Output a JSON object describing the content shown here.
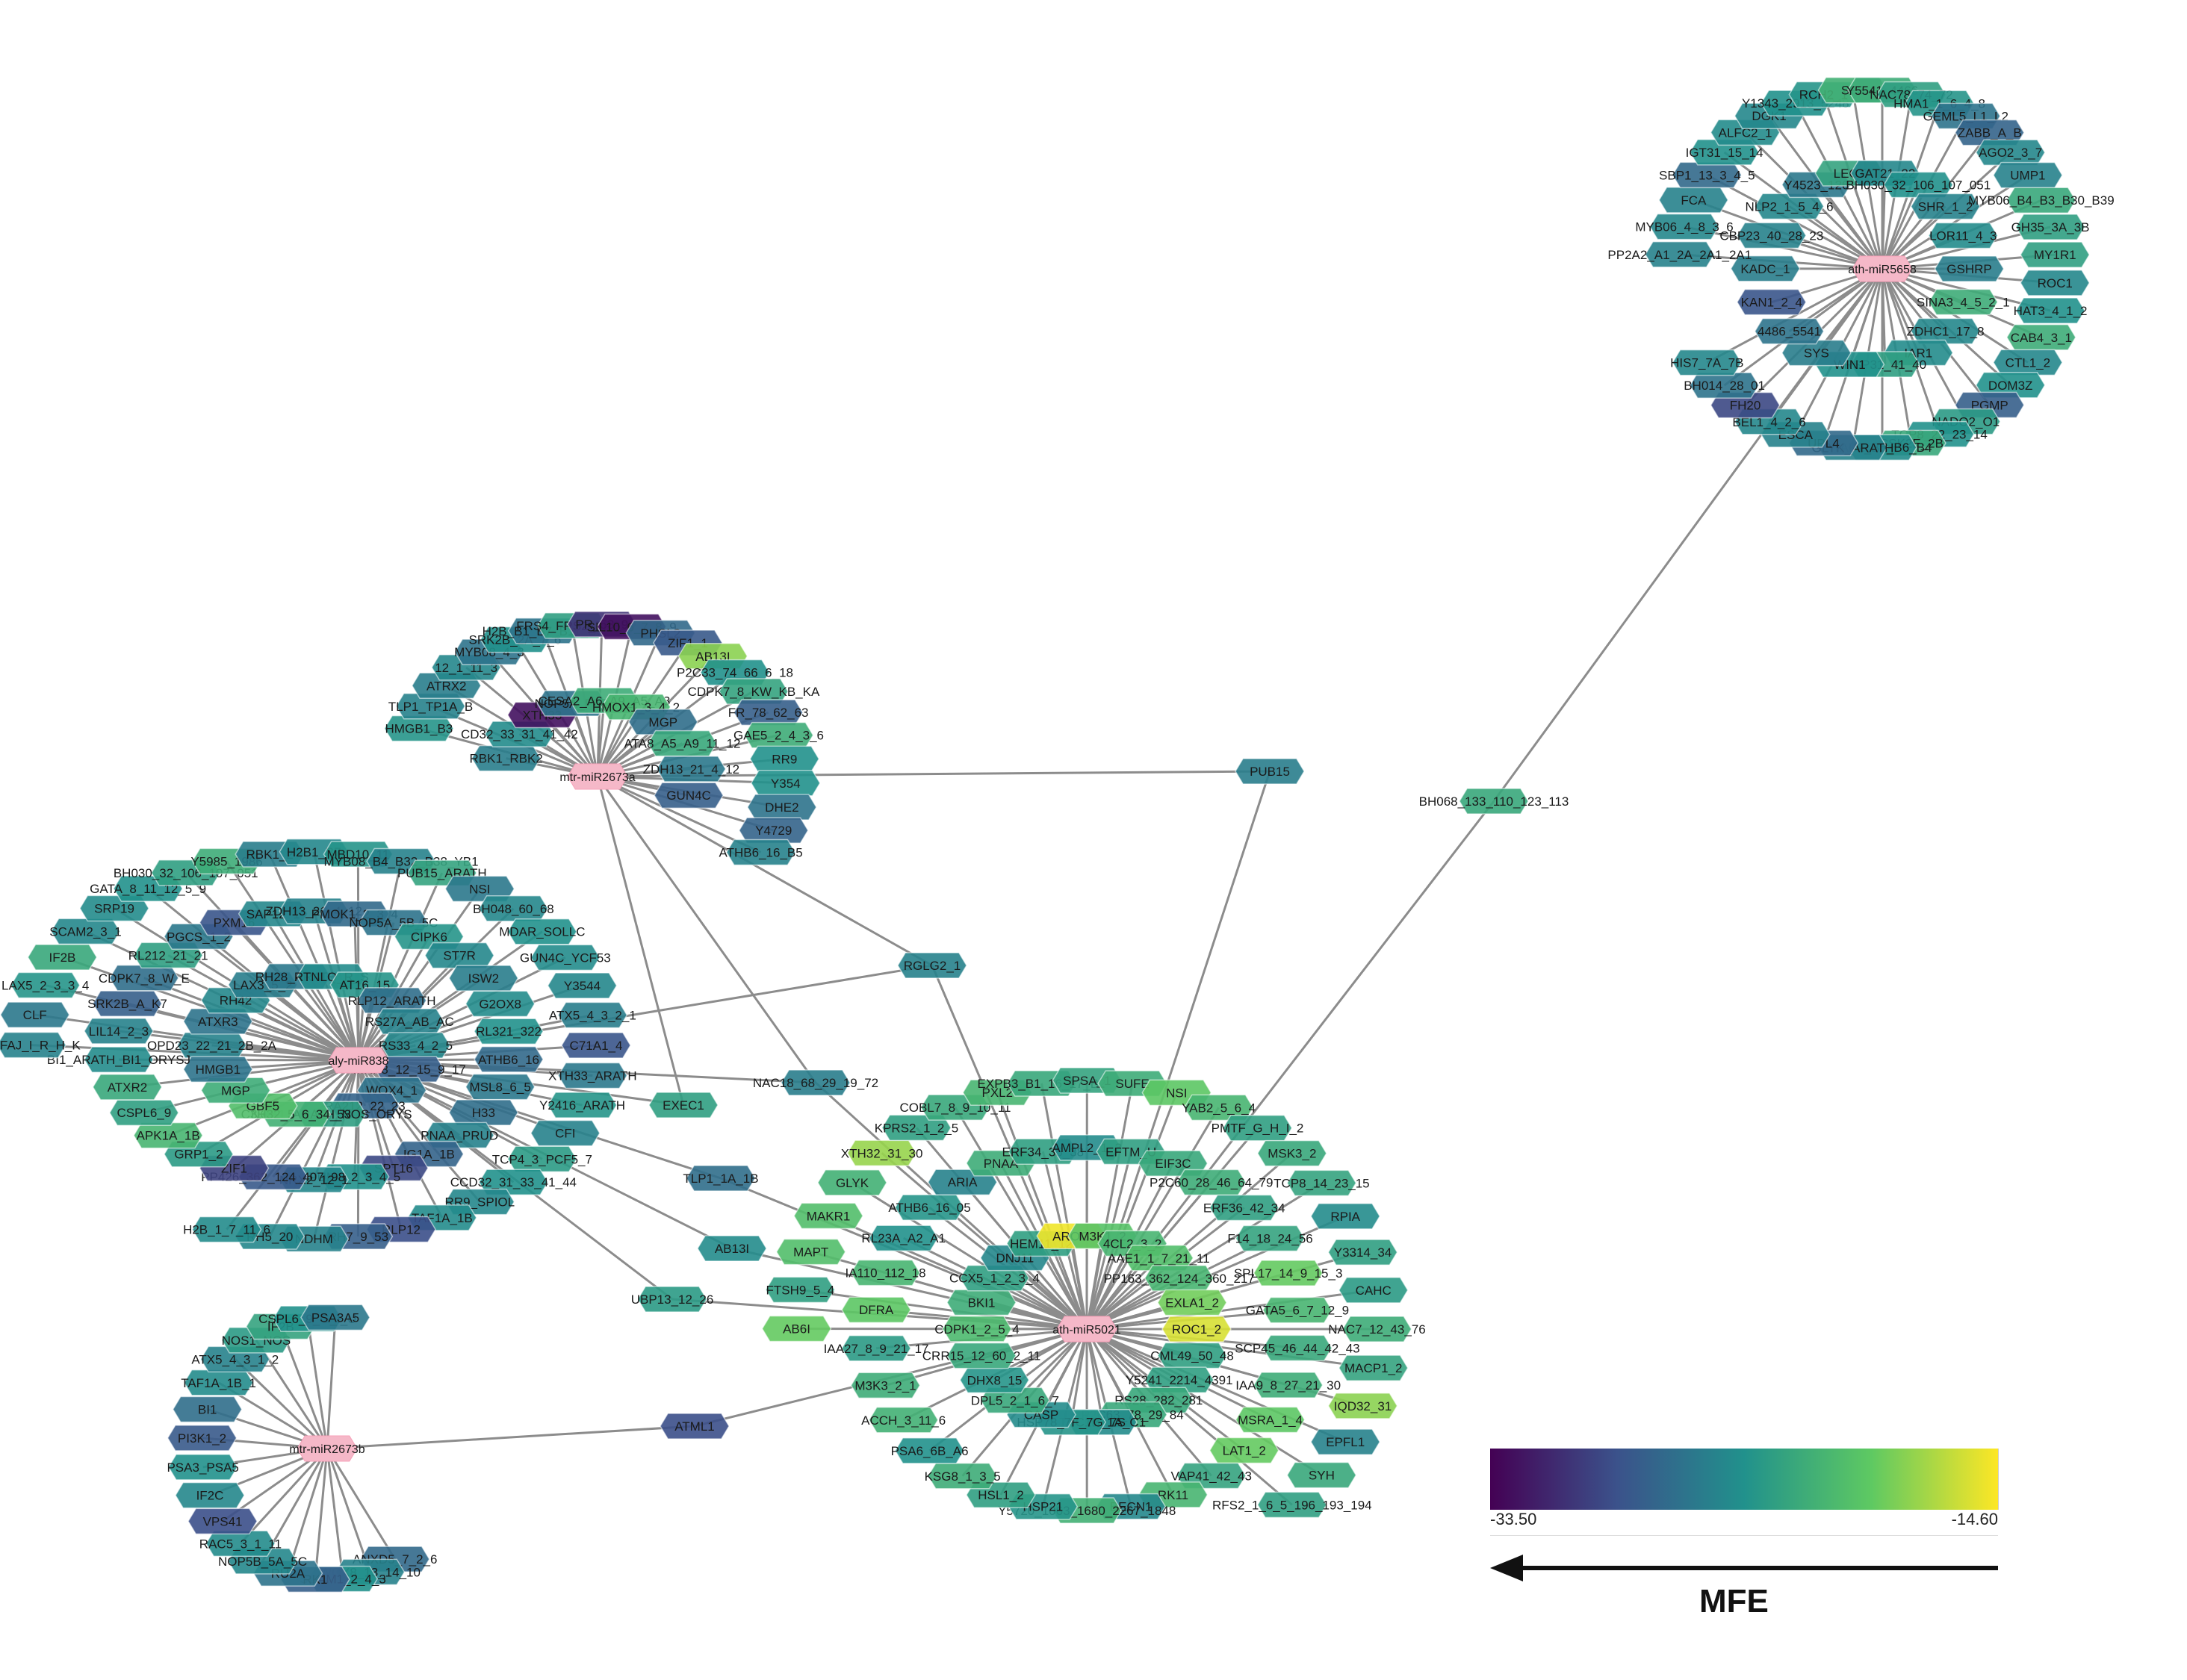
{
  "legend": {
    "title": "MFE",
    "min": "-33.50",
    "max": "-14.60",
    "colors": [
      "#440154",
      "#3b528b",
      "#21918c",
      "#5ec962",
      "#fde725"
    ]
  },
  "hubs": [
    {
      "id": "mtr-miR2673a"
    },
    {
      "id": "aly-miR838"
    },
    {
      "id": "mtr-miR2673b"
    },
    {
      "id": "ath-miR5021"
    },
    {
      "id": "ath-miR5658"
    }
  ],
  "clusters": [
    {
      "hub": "mtr-miR2673a",
      "nodes": [
        [
          "RBK1_RBK2",
          0.42
        ],
        [
          "CD32_33_31_41_42",
          0.48
        ],
        [
          "XTH33",
          0.05
        ],
        [
          "NOP5A_P5B",
          0.38
        ],
        [
          "CESA2_A6_A9_A5_A3",
          0.62
        ],
        [
          "HMOX1_3_4_2",
          0.66
        ],
        [
          "MGP",
          0.36
        ],
        [
          "ATA8_A5_A9_11_12",
          0.6
        ],
        [
          "ZDH13_21_4_12",
          0.4
        ],
        [
          "GUN4C",
          0.3
        ],
        [
          "HMGB1_B3",
          0.52
        ],
        [
          "TLP1_TP1A_B",
          0.44
        ],
        [
          "ATRX2",
          0.42
        ],
        [
          "12_1_11_3",
          0.46
        ],
        [
          "MYB08_4_3",
          0.38
        ],
        [
          "SRK2B_2A_7_6",
          0.5
        ],
        [
          "H2B_B1_B7_B11_B6",
          0.38
        ],
        [
          "FRS4_FRS2_FRS5",
          0.56
        ],
        [
          "PR_53_9",
          0.15
        ],
        [
          "SIL10_6_7_8_9",
          0.05
        ],
        [
          "PHSL2",
          0.34
        ],
        [
          "ZIF1_1",
          0.28
        ],
        [
          "AB13I",
          0.82
        ],
        [
          "P2C33_74_66_6_18",
          0.5
        ],
        [
          "CDPK7_8_KW_KB_KA",
          0.58
        ],
        [
          "FR_78_62_63",
          0.3
        ],
        [
          "GAE5_2_4_3_6",
          0.62
        ],
        [
          "RR9",
          0.5
        ],
        [
          "Y354",
          0.5
        ],
        [
          "DHE2",
          0.38
        ],
        [
          "Y4729",
          0.32
        ],
        [
          "ATHB6_16_B5",
          0.44
        ]
      ]
    },
    {
      "hub": "aly-miR838",
      "nodes": [
        [
          "OPD23_22_21_2B_2A",
          0.44
        ],
        [
          "ATXR3",
          0.38
        ],
        [
          "RH42",
          0.46
        ],
        [
          "LAX3_5_2",
          0.42
        ],
        [
          "RH28_ARATH",
          0.4
        ],
        [
          "RTNLQ_R_S",
          0.48
        ],
        [
          "AT16_15",
          0.52
        ],
        [
          "RLP12_ARATH",
          0.36
        ],
        [
          "RS27A_AB_AC",
          0.44
        ],
        [
          "RS33_4_2_5",
          0.46
        ],
        [
          "MRK8_12_15_9_17",
          0.3
        ],
        [
          "WOX4_1",
          0.38
        ],
        [
          "RA212_22_23",
          0.32
        ],
        [
          "NOS1_ARATH_NOS_ORYS",
          0.56
        ],
        [
          "C3H32_5_6_34_53",
          0.64
        ],
        [
          "GBF5",
          0.7
        ],
        [
          "MGP",
          0.62
        ],
        [
          "HMGB1",
          0.38
        ],
        [
          "LIL14_2_3",
          0.44
        ],
        [
          "SRK2B_A_K7",
          0.3
        ],
        [
          "CDPK7_8_W_E",
          0.36
        ],
        [
          "RL212_21_21",
          0.56
        ],
        [
          "PGCS_1_2",
          0.4
        ],
        [
          "PXM16",
          0.26
        ],
        [
          "SAP12_1",
          0.46
        ],
        [
          "ZDH13_21_4_12",
          0.44
        ],
        [
          "PMOK1_2_3_4",
          0.34
        ],
        [
          "NOP5A_5B_5C",
          0.38
        ],
        [
          "CIPK6",
          0.52
        ],
        [
          "ST7R",
          0.46
        ],
        [
          "ISW2",
          0.42
        ],
        [
          "G2OX8",
          0.48
        ],
        [
          "RL321_322",
          0.5
        ],
        [
          "ATHB6_16",
          0.34
        ],
        [
          "MSL8_6_5",
          0.4
        ],
        [
          "H33",
          0.36
        ],
        [
          "PNAA_PRUD",
          0.44
        ],
        [
          "IG1A_1B",
          0.32
        ],
        [
          "SPT16",
          0.22
        ],
        [
          "PUM1_2_3_4_5",
          0.5
        ],
        [
          "NRX2_12_1",
          0.46
        ],
        [
          "PP426_362_124_407_98",
          0.28
        ],
        [
          "ZIF1",
          0.2
        ],
        [
          "GRP1_2",
          0.54
        ],
        [
          "APK1A_1B",
          0.66
        ],
        [
          "CSPL6_9",
          0.56
        ],
        [
          "ATXR2",
          0.6
        ],
        [
          "BI1_ARATH_BI1_ORYSJ",
          0.48
        ],
        [
          "ARFAJ_I_R_H_K",
          0.44
        ],
        [
          "CLF",
          0.4
        ],
        [
          "LAX5_2_3_3_4",
          0.52
        ],
        [
          "IF2B",
          0.6
        ],
        [
          "SCAM2_3_1",
          0.46
        ],
        [
          "SRP19",
          0.48
        ],
        [
          "GATA_8_11_12_5_9",
          0.5
        ],
        [
          "BH030_32_106_107_051",
          0.56
        ],
        [
          "Y5985_1986",
          0.62
        ],
        [
          "RBK1_2",
          0.42
        ],
        [
          "H2B1_B7",
          0.46
        ],
        [
          "MBD10_11",
          0.52
        ],
        [
          "MYB08_B4_B32_B38_YB1",
          0.44
        ],
        [
          "PUB15_ARATH",
          0.58
        ],
        [
          "NSI",
          0.4
        ],
        [
          "BH048_60_68",
          0.46
        ],
        [
          "MDAR_SOLLC",
          0.5
        ],
        [
          "GUN4C_YCF53",
          0.48
        ],
        [
          "Y3544",
          0.46
        ],
        [
          "ATX5_4_3_2_1",
          0.42
        ],
        [
          "C71A1_4",
          0.26
        ],
        [
          "XTH33_ARATH",
          0.4
        ],
        [
          "Y2416_ARATH",
          0.52
        ],
        [
          "CFI",
          0.44
        ],
        [
          "TCP4_3_PCF5_7",
          0.54
        ],
        [
          "CCD32_31_33_41_44",
          0.5
        ],
        [
          "RR9_SPIOL",
          0.46
        ],
        [
          "TAF1A_1B",
          0.48
        ],
        [
          "RLP12",
          0.24
        ],
        [
          "RH7_9_53",
          0.3
        ],
        [
          "NDHM",
          0.44
        ],
        [
          "RH5_20",
          0.46
        ],
        [
          "H2B_1_7_11_6",
          0.48
        ]
      ]
    },
    {
      "hub": "mtr-miR2673b",
      "nodes": [
        [
          "ANXD5_7_2_6",
          0.34
        ],
        [
          "WOX8_13_14_10",
          0.44
        ],
        [
          "SCAM1_2_4_3",
          0.5
        ],
        [
          "RK1",
          0.3
        ],
        [
          "RU2A",
          0.38
        ],
        [
          "NOP5B_5A_5C",
          0.46
        ],
        [
          "RAC5_3_1_11",
          0.48
        ],
        [
          "VPS41",
          0.24
        ],
        [
          "IF2C",
          0.46
        ],
        [
          "PSA3_PSA5",
          0.5
        ],
        [
          "PI3K1_2",
          0.28
        ],
        [
          "BI1",
          0.36
        ],
        [
          "TAF1A_1B_1",
          0.48
        ],
        [
          "ATX5_4_3_1_2",
          0.44
        ],
        [
          "NOS1_NOS",
          0.54
        ],
        [
          "IF2B",
          0.58
        ],
        [
          "CSPL6_9_G_I_U",
          0.5
        ],
        [
          "PSA3A5",
          0.4
        ]
      ]
    },
    {
      "hub": "ath-miR5021",
      "nodes": [
        [
          "CDPK1_2_5_4",
          0.68
        ],
        [
          "BKI1",
          0.62
        ],
        [
          "CCX5_1_2_3_4",
          0.56
        ],
        [
          "DNJ11",
          0.46
        ],
        [
          "HEM11_12",
          0.56
        ],
        [
          "AROG",
          0.98
        ],
        [
          "M3K1_2",
          0.72
        ],
        [
          "4CL2_3_2",
          0.66
        ],
        [
          "AAE1_1_7_21_11",
          0.7
        ],
        [
          "PP163_362_124_360_217",
          0.66
        ],
        [
          "EXLA1_2",
          0.78
        ],
        [
          "ROC1_2",
          0.94
        ],
        [
          "CML49_50_48",
          0.56
        ],
        [
          "Y5241_2214_4391",
          0.56
        ],
        [
          "RS28_282_281",
          0.6
        ],
        [
          "P2C63_78_29_84",
          0.6
        ],
        [
          "TPC1B_1A_C1",
          0.48
        ],
        [
          "HSP78_7F_7G_7S",
          0.52
        ],
        [
          "CASP",
          0.48
        ],
        [
          "DPL5_2_1_6_7",
          0.6
        ],
        [
          "DHX8_15",
          0.52
        ],
        [
          "CRR15_12_60_2_11",
          0.6
        ],
        [
          "DFRA",
          0.74
        ],
        [
          "IA110_112_18",
          0.66
        ],
        [
          "RL23A_A2_A1",
          0.5
        ],
        [
          "ATHB6_16_05",
          0.52
        ],
        [
          "ARIA",
          0.44
        ],
        [
          "PNAA",
          0.62
        ],
        [
          "ERF34_35_38",
          0.56
        ],
        [
          "AMPL2_1_3",
          0.48
        ],
        [
          "EFTM_U",
          0.56
        ],
        [
          "EIF3C",
          0.6
        ],
        [
          "P2C60_28_46_64_79",
          0.62
        ],
        [
          "ERF36_42_34",
          0.56
        ],
        [
          "F14_18_24_56",
          0.58
        ],
        [
          "SPL17_14_9_15_3",
          0.76
        ],
        [
          "GATA5_6_7_12_9",
          0.66
        ],
        [
          "SCP45_46_44_42_43",
          0.6
        ],
        [
          "IAA9_8_27_21_30",
          0.62
        ],
        [
          "MSRA_1_4",
          0.74
        ],
        [
          "LAT1_2",
          0.76
        ],
        [
          "VAP41_42_43",
          0.58
        ],
        [
          "RK11",
          0.66
        ],
        [
          "BECN1",
          0.46
        ],
        [
          "Y5720_1063_1680_2267_1848",
          0.64
        ],
        [
          "HSP21",
          0.52
        ],
        [
          "HSL1_2",
          0.56
        ],
        [
          "KSG8_1_3_5",
          0.62
        ],
        [
          "PSA6_6B_A6",
          0.5
        ],
        [
          "ACCH_3_11_6",
          0.64
        ],
        [
          "M3K3_2_1",
          0.62
        ],
        [
          "IAA27_8_9_21_17",
          0.54
        ],
        [
          "AB6I",
          0.76
        ],
        [
          "FTSH9_5_4",
          0.56
        ],
        [
          "MAPT",
          0.7
        ],
        [
          "MAKR1",
          0.7
        ],
        [
          "GLYK",
          0.64
        ],
        [
          "XTH32_31_30",
          0.84
        ],
        [
          "KPRS2_1_2_5",
          0.56
        ],
        [
          "COBL7_8_9_10_11",
          0.6
        ],
        [
          "PXL2",
          0.66
        ],
        [
          "EXPB3_B1_16_17_B2",
          0.6
        ],
        [
          "SPSA_1",
          0.58
        ],
        [
          "SUFE",
          0.62
        ],
        [
          "NSI",
          0.74
        ],
        [
          "YAB2_5_6_4",
          0.66
        ],
        [
          "PMTF_G_H_I_2",
          0.56
        ],
        [
          "MSK3_2",
          0.6
        ],
        [
          "TCP8_14_23_15",
          0.58
        ],
        [
          "RPIA",
          0.48
        ],
        [
          "Y3314_34",
          0.56
        ],
        [
          "CAHC",
          0.54
        ],
        [
          "NAC7_12_43_76",
          0.62
        ],
        [
          "MACP1_2",
          0.58
        ],
        [
          "IQD32_31",
          0.82
        ],
        [
          "EPFL1",
          0.44
        ],
        [
          "SYH",
          0.6
        ],
        [
          "RFS2_1_6_5_196_193_194",
          0.56
        ]
      ]
    },
    {
      "hub": "ath-miR5658",
      "nodes": [
        [
          "KADC_1",
          0.42
        ],
        [
          "CBP23_40_28_23",
          0.44
        ],
        [
          "NLP2_1_5_4_6",
          0.46
        ],
        [
          "Y4523_126",
          0.4
        ],
        [
          "LECT",
          0.58
        ],
        [
          "GAT21_22",
          0.46
        ],
        [
          "BH030_32_106_107_051",
          0.5
        ],
        [
          "SHR_1_2",
          0.44
        ],
        [
          "LOR11_4_3",
          0.48
        ],
        [
          "GSHRP",
          0.42
        ],
        [
          "SINA3_4_5_2_1",
          0.62
        ],
        [
          "ZDHC1_17_8",
          0.46
        ],
        [
          "IAR1",
          0.48
        ],
        [
          "RSP31_41_40",
          0.56
        ],
        [
          "WIN1",
          0.5
        ],
        [
          "SYS",
          0.42
        ],
        [
          "4486_5541",
          0.38
        ],
        [
          "KAN1_2_4",
          0.26
        ],
        [
          "PP2A2_A1_2A_2A1_2A1",
          0.44
        ],
        [
          "MYB06_4_8_3_6",
          0.46
        ],
        [
          "FCA",
          0.44
        ],
        [
          "SBP1_13_3_4_5",
          0.34
        ],
        [
          "IGT31_15_14",
          0.5
        ],
        [
          "ALFC2_1",
          0.48
        ],
        [
          "DGK1",
          0.46
        ],
        [
          "Y1343_2913_5248",
          0.5
        ],
        [
          "RCH2_1",
          0.52
        ],
        [
          "SF3",
          0.64
        ],
        [
          "Y5541_4466",
          0.62
        ],
        [
          "NAC78_74_72",
          0.56
        ],
        [
          "HMA1_1_6_4_8",
          0.52
        ],
        [
          "GEML5_L1_L2",
          0.38
        ],
        [
          "ZABB_A_B",
          0.32
        ],
        [
          "AGO2_3_7",
          0.46
        ],
        [
          "UMP1",
          0.44
        ],
        [
          "MYB06_B4_B3_B30_B39",
          0.6
        ],
        [
          "GH35_3A_3B",
          0.56
        ],
        [
          "MY1R1",
          0.56
        ],
        [
          "ROC1",
          0.46
        ],
        [
          "HAT3_4_1_2",
          0.5
        ],
        [
          "CAB4_3_1",
          0.62
        ],
        [
          "CTL1_2",
          0.46
        ],
        [
          "DOM3Z",
          0.5
        ],
        [
          "PGMP",
          0.3
        ],
        [
          "NADO2_O1",
          0.54
        ],
        [
          "TCP8_22_23_14",
          0.5
        ],
        [
          "CSK2E_2B",
          0.6
        ],
        [
          "YAB2_B5_B6_B4",
          0.48
        ],
        [
          "GLYK_ARATH",
          0.44
        ],
        [
          "UPL4",
          0.34
        ],
        [
          "ESCA",
          0.44
        ],
        [
          "BEL1_4_2_6",
          0.46
        ],
        [
          "FH20",
          0.22
        ],
        [
          "BH014_28_01",
          0.38
        ],
        [
          "HIS7_7A_7B",
          0.46
        ]
      ]
    }
  ],
  "bridges": [
    {
      "id": "PUB15",
      "v": 0.42,
      "links": [
        "mtr-miR2673a",
        "ath-miR5021"
      ]
    },
    {
      "id": "BH068_133_110_123_113",
      "v": 0.6,
      "links": [
        "ath-miR5658",
        "ath-miR5021"
      ]
    },
    {
      "id": "RGLG2_1",
      "v": 0.44,
      "links": [
        "aly-miR838",
        "mtr-miR2673a",
        "ath-miR5021"
      ]
    },
    {
      "id": "NAC18_68_29_19_72",
      "v": 0.42,
      "links": [
        "aly-miR838",
        "mtr-miR2673a",
        "ath-miR5021"
      ]
    },
    {
      "id": "EXEC1",
      "v": 0.56,
      "links": [
        "aly-miR838",
        "mtr-miR2673a"
      ]
    },
    {
      "id": "TLP1_1A_1B",
      "v": 0.36,
      "links": [
        "aly-miR838",
        "ath-miR5021"
      ]
    },
    {
      "id": "AB13I",
      "v": 0.48,
      "links": [
        "aly-miR838",
        "ath-miR5021"
      ]
    },
    {
      "id": "UBP13_12_26",
      "v": 0.54,
      "links": [
        "aly-miR838",
        "ath-miR5021"
      ]
    },
    {
      "id": "ATML1",
      "v": 0.24,
      "links": [
        "mtr-miR2673b",
        "ath-miR5021"
      ]
    }
  ]
}
